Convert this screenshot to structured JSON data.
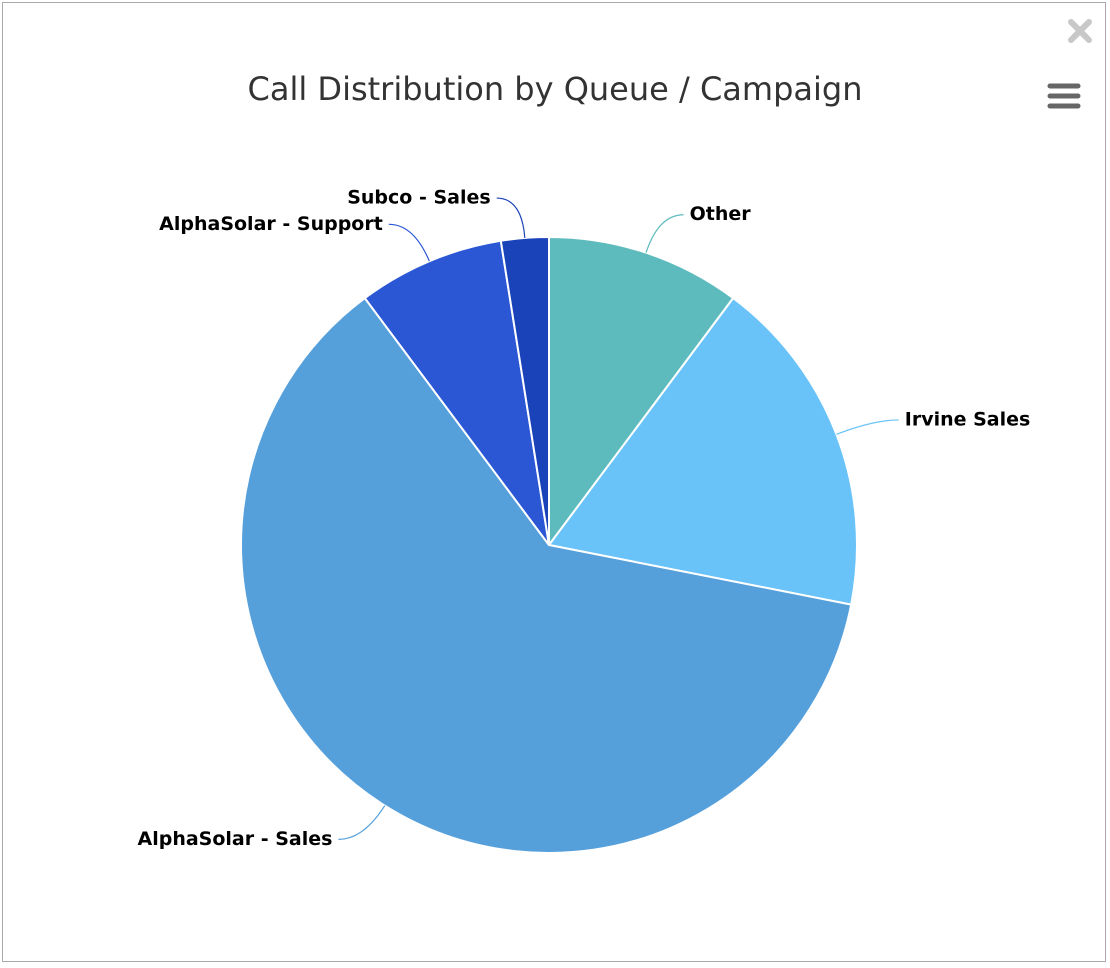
{
  "chart_data": {
    "type": "pie",
    "title": "Call Distribution by Queue / Campaign",
    "categories": [
      "Other",
      "Irvine Sales",
      "AlphaSolar - Sales",
      "AlphaSolar - Support",
      "Subco - Sales"
    ],
    "values": [
      10.2,
      17.9,
      61.7,
      7.7,
      2.5
    ],
    "colors": [
      "#5dbbbd",
      "#6ac3f8",
      "#559fdb",
      "#2b57d5",
      "#1b43b9"
    ]
  }
}
